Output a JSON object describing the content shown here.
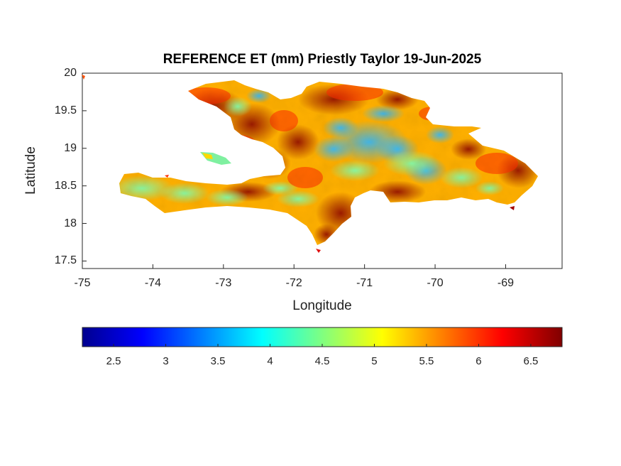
{
  "chart_data": {
    "type": "heatmap",
    "title": "REFERENCE ET (mm) Priestly Taylor 19-Jun-2025",
    "xlabel": "Longitude",
    "ylabel": "Latitude",
    "xlim": [
      -75,
      -68.2
    ],
    "ylim": [
      17.4,
      20
    ],
    "x_ticks": [
      "-75",
      "-74",
      "-73",
      "-72",
      "-71",
      "-70",
      "-69"
    ],
    "y_ticks": [
      "20",
      "19.5",
      "19",
      "18.5",
      "18",
      "17.5"
    ],
    "colormap": "jet",
    "colorbar": {
      "range": [
        2.2,
        6.8
      ],
      "ticks": [
        "2.5",
        "3",
        "3.5",
        "4",
        "4.5",
        "5",
        "5.5",
        "6",
        "6.5"
      ],
      "orientation": "horizontal",
      "placement": "below"
    },
    "region": "Hispaniola (Haiti and Dominican Republic)",
    "grid": false
  }
}
